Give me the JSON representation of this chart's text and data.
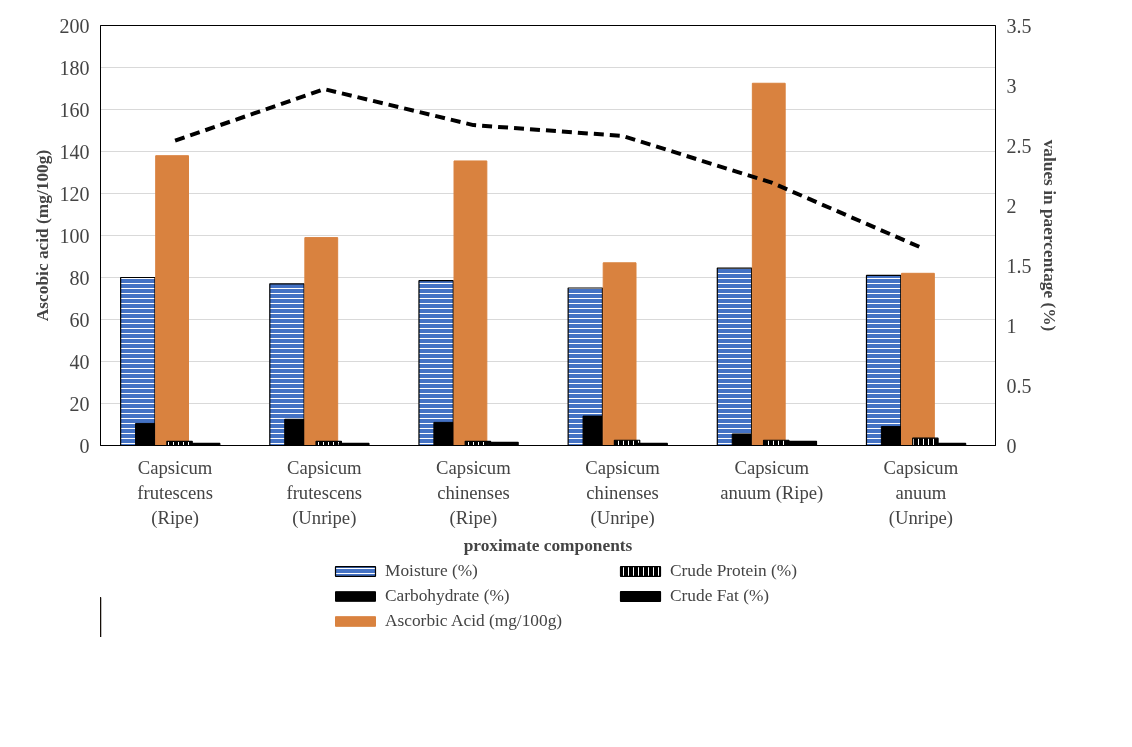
{
  "chart_data": {
    "type": "bar",
    "xlabel": "proximate components",
    "ylabel": "Ascobic acid (mg/100g)",
    "y2label": "values in paercentage (%)",
    "categories": [
      "Capsicum\nfrutescens\n(Ripe)",
      "Capsicum\nfrutescens\n(Unripe)",
      "Capsicum\nchinenses\n(Ripe)",
      "Capsicum\nchinenses\n(Unripe)",
      "Capsicum\nanuum (Ripe)",
      "Capsicum\nanuum\n(Unripe)"
    ],
    "series": [
      {
        "name": "Moisture (%)",
        "color": "#4472c4",
        "values": [
          80,
          77,
          78.5,
          75,
          84.5,
          81
        ]
      },
      {
        "name": "Carbohydrate (%)",
        "color": "#000000",
        "values": [
          10.5,
          12.5,
          11,
          14,
          5.5,
          9
        ]
      },
      {
        "name": "Ascorbic Acid (mg/100g)",
        "color": "#d9823f",
        "values": [
          138,
          99,
          135.5,
          87,
          172.5,
          82
        ]
      },
      {
        "name": "Crude Protein (%)",
        "color": "#000000",
        "values": [
          2,
          2,
          2,
          2.5,
          2.5,
          3.5
        ]
      },
      {
        "name": "Crude Fat (%)",
        "color": "#000000",
        "values": [
          1,
          1,
          1.5,
          1,
          2,
          1
        ]
      },
      {
        "type": "line",
        "axis": "y2",
        "color": "#000000",
        "line_style": "dashed",
        "values": [
          2.54,
          2.97,
          2.67,
          2.58,
          2.19,
          1.65
        ]
      }
    ],
    "ylim": [
      0,
      200
    ],
    "yticks": [
      0,
      20,
      40,
      60,
      80,
      100,
      120,
      140,
      160,
      180,
      200
    ],
    "y2lim": [
      0,
      3.5
    ],
    "y2ticks": [
      0,
      0.5,
      1,
      1.5,
      2,
      2.5,
      3,
      3.5
    ],
    "grid": "y",
    "legend": "bottom"
  }
}
